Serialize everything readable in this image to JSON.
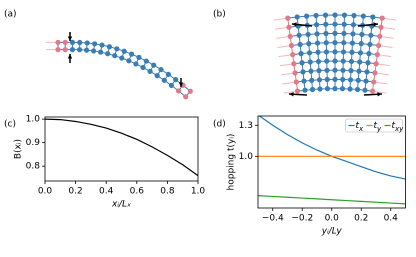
{
  "panel_labels": [
    "(a)",
    "(b)",
    "(c)",
    "(d)"
  ],
  "chart_data": [
    {
      "type": "line",
      "ylabel": "B(xᵢ)",
      "xlabel": "xᵢ/Lₓ",
      "x": [
        0,
        0.1,
        0.2,
        0.3,
        0.4,
        0.5,
        0.6,
        0.7,
        0.8,
        0.9,
        1
      ],
      "values": [
        1.0,
        0.998,
        0.99,
        0.978,
        0.962,
        0.94,
        0.914,
        0.882,
        0.846,
        0.806,
        0.76
      ],
      "color": "#000000",
      "xlim": [
        0,
        1
      ],
      "xticks": [
        {
          "value": 0,
          "label": "0.0"
        },
        0.2,
        0.4,
        0.6,
        0.8,
        {
          "value": 1,
          "label": "1.0"
        }
      ],
      "ylim": [
        0.737,
        1.009
      ],
      "yticks": [
        0.8,
        0.9,
        {
          "value": 1,
          "label": "1.0"
        }
      ]
    },
    {
      "type": "line",
      "ylabel": "hopping t(yᵢ)",
      "xlabel": "yᵢ/Ly",
      "x": [
        -0.5,
        -0.4,
        -0.3,
        -0.2,
        -0.1,
        0,
        0.1,
        0.2,
        0.3,
        0.4,
        0.5
      ],
      "series": [
        {
          "name": "tx",
          "color": "#1f77b4",
          "values": [
            1.4,
            1.3,
            1.21,
            1.13,
            1.06,
            1.0,
            0.95,
            0.9,
            0.85,
            0.81,
            0.78
          ]
        },
        {
          "name": "ty",
          "color": "#ff7f0e",
          "values": [
            1.0,
            1.0,
            1.0,
            1.0,
            1.0,
            1.0,
            1.0,
            1.0,
            1.0,
            1.0,
            1.0
          ]
        },
        {
          "name": "txy",
          "color": "#2ca02c",
          "values": [
            0.62,
            0.612,
            0.604,
            0.596,
            0.588,
            0.58,
            0.572,
            0.564,
            0.556,
            0.548,
            0.54
          ]
        }
      ],
      "xlim": [
        -0.5,
        0.5
      ],
      "xticks": [
        {
          "value": -0.4,
          "label": "−0.4"
        },
        {
          "value": -0.2,
          "label": "−0.2"
        },
        {
          "value": 0,
          "label": "0.0"
        },
        0.2,
        0.4
      ],
      "ylim": [
        0.5,
        1.39
      ],
      "yticks": [
        {
          "value": 1,
          "label": "1.0"
        },
        1.3
      ],
      "legend": "upper right"
    }
  ]
}
